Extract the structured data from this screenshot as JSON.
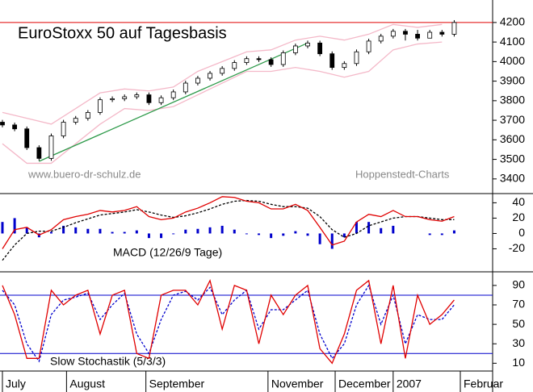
{
  "chart_data": [
    {
      "type": "candlestick",
      "title": "EuroStoxx 50 auf Tagesbasis",
      "annotations": [
        "www.buero-dr-schulz.de",
        "Hoppenstedt-Charts"
      ],
      "xlim": [
        0,
        150
      ],
      "ylim": [
        3325,
        4315
      ],
      "yticks": [
        3400,
        3500,
        3600,
        3700,
        3800,
        3900,
        4000,
        4100,
        4200
      ],
      "x": [
        0,
        4,
        8,
        12,
        16,
        20,
        24,
        28,
        32,
        36,
        40,
        44,
        48,
        52,
        56,
        60,
        64,
        68,
        72,
        76,
        80,
        84,
        88,
        92,
        96,
        100,
        104,
        108,
        112,
        116,
        120,
        124,
        128,
        132,
        136,
        140,
        144,
        148
      ],
      "open": [
        3690,
        3676,
        3656,
        3560,
        3505,
        3620,
        3690,
        3710,
        3740,
        3805,
        3810,
        3820,
        3830,
        3790,
        3815,
        3845,
        3890,
        3915,
        3940,
        3965,
        3995,
        4015,
        4010,
        3985,
        4045,
        4080,
        4095,
        4040,
        3970,
        3990,
        4050,
        4105,
        4130,
        4155,
        4140,
        4120,
        4150,
        4140
      ],
      "high": [
        3702,
        3688,
        3668,
        3572,
        3632,
        3702,
        3722,
        3752,
        3817,
        3822,
        3832,
        3842,
        3842,
        3827,
        3857,
        3902,
        3927,
        3952,
        3977,
        4007,
        4027,
        4027,
        4022,
        4057,
        4092,
        4107,
        4107,
        4052,
        4002,
        4062,
        4117,
        4142,
        4167,
        4167,
        4162,
        4162,
        4162,
        4212
      ],
      "low": [
        3664,
        3644,
        3548,
        3493,
        3493,
        3608,
        3678,
        3698,
        3728,
        3793,
        3798,
        3808,
        3778,
        3778,
        3803,
        3833,
        3878,
        3903,
        3928,
        3953,
        3983,
        3998,
        3973,
        3973,
        4033,
        4068,
        4028,
        3958,
        3958,
        3978,
        4038,
        4093,
        4118,
        4108,
        4108,
        4128,
        4128,
        4128
      ],
      "close": [
        3676,
        3656,
        3560,
        3505,
        3620,
        3690,
        3710,
        3740,
        3805,
        3810,
        3820,
        3830,
        3790,
        3815,
        3845,
        3890,
        3915,
        3940,
        3965,
        3995,
        4015,
        4010,
        3985,
        4045,
        4080,
        4095,
        4040,
        3970,
        3990,
        4050,
        4105,
        4130,
        4155,
        4140,
        4120,
        4150,
        4140,
        4200
      ],
      "band_x": [
        0,
        8,
        16,
        24,
        32,
        40,
        48,
        56,
        64,
        72,
        80,
        88,
        96,
        104,
        112,
        120,
        128,
        136,
        144
      ],
      "upper_band": [
        3740,
        3710,
        3680,
        3760,
        3840,
        3860,
        3850,
        3870,
        3950,
        4000,
        4050,
        4060,
        4110,
        4130,
        4110,
        4140,
        4190,
        4175,
        4190
      ],
      "lower_band": [
        3580,
        3480,
        3480,
        3580,
        3680,
        3760,
        3750,
        3770,
        3830,
        3890,
        3950,
        3950,
        3970,
        3950,
        3920,
        3950,
        4060,
        4090,
        4100
      ],
      "band_color": "#f4b8c8",
      "trendline": {
        "x": [
          12,
          100
        ],
        "values": [
          3490,
          4095
        ],
        "color": "#2e9a4a"
      },
      "reference_lines": [
        4200
      ],
      "reference_color": "#e00000"
    },
    {
      "type": "macd",
      "label": "MACD (12/26/9 Tage)",
      "xlim": [
        0,
        150
      ],
      "ylim": [
        -50,
        52
      ],
      "yticks": [
        -20,
        0,
        20,
        40
      ],
      "x": [
        0,
        4,
        8,
        12,
        16,
        20,
        24,
        28,
        32,
        36,
        40,
        44,
        48,
        52,
        56,
        60,
        64,
        68,
        72,
        76,
        80,
        84,
        88,
        92,
        96,
        100,
        104,
        108,
        112,
        116,
        120,
        124,
        128,
        132,
        136,
        140,
        144,
        148
      ],
      "macd": [
        -20,
        5,
        8,
        -2,
        5,
        18,
        22,
        25,
        30,
        28,
        30,
        35,
        22,
        18,
        20,
        28,
        33,
        40,
        48,
        47,
        42,
        40,
        32,
        32,
        38,
        30,
        8,
        -15,
        -10,
        15,
        25,
        22,
        30,
        22,
        22,
        18,
        16,
        22
      ],
      "signal": [
        -35,
        -15,
        0,
        3,
        3,
        8,
        14,
        19,
        24,
        26,
        28,
        31,
        28,
        24,
        21,
        23,
        27,
        32,
        38,
        42,
        43,
        42,
        38,
        35,
        35,
        33,
        22,
        5,
        -5,
        0,
        10,
        15,
        20,
        22,
        22,
        20,
        18,
        18
      ],
      "histogram": [
        15,
        20,
        8,
        -5,
        2,
        10,
        8,
        6,
        6,
        2,
        2,
        4,
        -6,
        -6,
        -1,
        5,
        6,
        8,
        10,
        5,
        -1,
        -2,
        -6,
        -3,
        3,
        -3,
        -14,
        -20,
        -5,
        15,
        15,
        7,
        10,
        0,
        0,
        -2,
        -2,
        4
      ],
      "macd_color": "#e00000",
      "signal_color": "#000000",
      "histogram_color": "#0000cc"
    },
    {
      "type": "stochastic",
      "label": "Slow Stochastik (5/3/3)",
      "xlim": [
        0,
        150
      ],
      "ylim": [
        2,
        104
      ],
      "yticks": [
        10,
        30,
        50,
        70,
        90
      ],
      "xticks": [
        {
          "value": 0,
          "label": "July"
        },
        {
          "value": 21,
          "label": "August"
        },
        {
          "value": 47,
          "label": "September"
        },
        {
          "value": 87,
          "label": "November"
        },
        {
          "value": 109,
          "label": "December"
        },
        {
          "value": 128,
          "label": "2007"
        },
        {
          "value": 150,
          "label": "Februar"
        }
      ],
      "x": [
        0,
        4,
        8,
        12,
        16,
        20,
        24,
        28,
        32,
        36,
        40,
        44,
        48,
        52,
        56,
        60,
        64,
        68,
        72,
        76,
        80,
        84,
        88,
        92,
        96,
        100,
        104,
        108,
        112,
        116,
        120,
        124,
        128,
        132,
        136,
        140,
        144,
        148
      ],
      "k": [
        90,
        60,
        15,
        15,
        85,
        70,
        80,
        85,
        40,
        80,
        85,
        20,
        15,
        80,
        85,
        85,
        70,
        95,
        45,
        90,
        85,
        30,
        80,
        60,
        80,
        90,
        25,
        10,
        40,
        85,
        95,
        30,
        90,
        15,
        80,
        50,
        60,
        75
      ],
      "d": [
        85,
        70,
        30,
        12,
        60,
        75,
        78,
        82,
        55,
        70,
        82,
        40,
        20,
        55,
        80,
        84,
        75,
        88,
        60,
        75,
        85,
        45,
        65,
        65,
        75,
        85,
        40,
        15,
        30,
        70,
        90,
        50,
        80,
        30,
        60,
        55,
        55,
        70
      ],
      "k_color": "#e00000",
      "d_color": "#0000cc",
      "reference_lines": [
        80,
        20
      ],
      "reference_color": "#0000cc"
    }
  ]
}
